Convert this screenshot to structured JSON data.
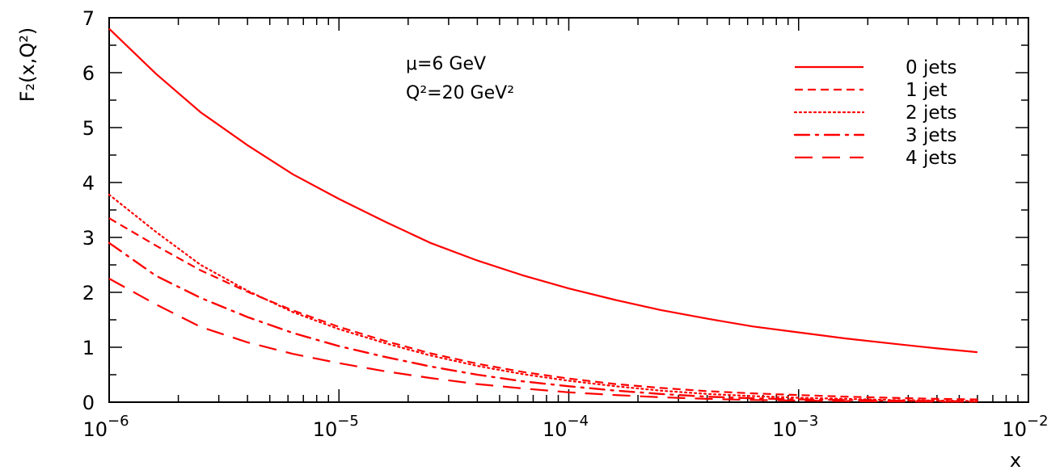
{
  "chart_data": {
    "type": "line",
    "title": "",
    "xlabel": "x",
    "ylabel": "F₂(x,Q²)",
    "xscale": "log",
    "xlim": [
      1e-06,
      0.01
    ],
    "ylim": [
      0,
      7
    ],
    "grid": false,
    "legend_position": "top-right",
    "color": "#ff0000",
    "x_ticks": [
      {
        "value": 1e-06,
        "base": "10",
        "exp": "−6"
      },
      {
        "value": 1e-05,
        "base": "10",
        "exp": "−5"
      },
      {
        "value": 0.0001,
        "base": "10",
        "exp": "−4"
      },
      {
        "value": 0.001,
        "base": "10",
        "exp": "−3"
      },
      {
        "value": 0.01,
        "base": "10",
        "exp": "−2"
      }
    ],
    "y_ticks": [
      {
        "value": 0,
        "label": "0"
      },
      {
        "value": 1,
        "label": "1"
      },
      {
        "value": 2,
        "label": "2"
      },
      {
        "value": 3,
        "label": "3"
      },
      {
        "value": 4,
        "label": "4"
      },
      {
        "value": 5,
        "label": "5"
      },
      {
        "value": 6,
        "label": "6"
      },
      {
        "value": 7,
        "label": "7"
      }
    ],
    "annotations": [
      "μ=6 GeV",
      "Q²=20 GeV²"
    ],
    "series": [
      {
        "name": "0 jets",
        "style": "solid",
        "x": [
          1e-06,
          1.6e-06,
          2.5e-06,
          4e-06,
          6.3e-06,
          1e-05,
          1.6e-05,
          2.5e-05,
          4e-05,
          6.3e-05,
          0.0001,
          0.00016,
          0.00025,
          0.0004,
          0.00063,
          0.001,
          0.0016,
          0.0025,
          0.004,
          0.006
        ],
        "y": [
          6.8,
          5.98,
          5.28,
          4.68,
          4.15,
          3.7,
          3.28,
          2.9,
          2.58,
          2.31,
          2.07,
          1.86,
          1.68,
          1.52,
          1.38,
          1.27,
          1.16,
          1.07,
          0.98,
          0.91
        ]
      },
      {
        "name": "1 jet",
        "style": "dashed",
        "x": [
          1e-06,
          1.6e-06,
          2.5e-06,
          4e-06,
          6.3e-06,
          1e-05,
          1.6e-05,
          2.5e-05,
          4e-05,
          6.3e-05,
          0.0001,
          0.00016,
          0.00025,
          0.0004,
          0.00063,
          0.001,
          0.0016,
          0.0025,
          0.004,
          0.006
        ],
        "y": [
          3.35,
          2.85,
          2.4,
          2.01,
          1.67,
          1.37,
          1.11,
          0.89,
          0.7,
          0.55,
          0.43,
          0.33,
          0.26,
          0.2,
          0.16,
          0.13,
          0.1,
          0.08,
          0.06,
          0.05
        ]
      },
      {
        "name": "2 jets",
        "style": "dotted",
        "x": [
          1e-06,
          1.6e-06,
          2.5e-06,
          4e-06,
          6.3e-06,
          1e-05,
          1.6e-05,
          2.5e-05,
          4e-05,
          6.3e-05,
          0.0001,
          0.00016,
          0.00025,
          0.0004,
          0.00063,
          0.001,
          0.0016,
          0.0025,
          0.004,
          0.006
        ],
        "y": [
          3.78,
          3.1,
          2.5,
          2.03,
          1.64,
          1.33,
          1.07,
          0.85,
          0.66,
          0.51,
          0.39,
          0.29,
          0.21,
          0.15,
          0.11,
          0.08,
          0.06,
          0.04,
          0.03,
          0.02
        ]
      },
      {
        "name": "3 jets",
        "style": "dashdot",
        "x": [
          1e-06,
          1.6e-06,
          2.5e-06,
          4e-06,
          6.3e-06,
          1e-05,
          1.6e-05,
          2.5e-05,
          4e-05,
          6.3e-05,
          0.0001,
          0.00016,
          0.00025,
          0.0004,
          0.00063,
          0.001,
          0.0016,
          0.0025,
          0.004,
          0.006
        ],
        "y": [
          2.9,
          2.3,
          1.9,
          1.55,
          1.26,
          1.02,
          0.82,
          0.65,
          0.5,
          0.38,
          0.29,
          0.21,
          0.15,
          0.1,
          0.07,
          0.05,
          0.04,
          0.03,
          0.02,
          0.01
        ]
      },
      {
        "name": "4 jets",
        "style": "longdash",
        "x": [
          1e-06,
          1.6e-06,
          2.5e-06,
          4e-06,
          6.3e-06,
          1e-05,
          1.6e-05,
          2.5e-05,
          4e-05,
          6.3e-05,
          0.0001,
          0.00016,
          0.00025,
          0.0004,
          0.00063,
          0.001,
          0.0016,
          0.0025,
          0.004,
          0.006
        ],
        "y": [
          2.25,
          1.78,
          1.37,
          1.09,
          0.88,
          0.71,
          0.56,
          0.44,
          0.33,
          0.25,
          0.18,
          0.13,
          0.09,
          0.06,
          0.04,
          0.03,
          0.02,
          0.015,
          0.01,
          0.01
        ]
      }
    ]
  }
}
